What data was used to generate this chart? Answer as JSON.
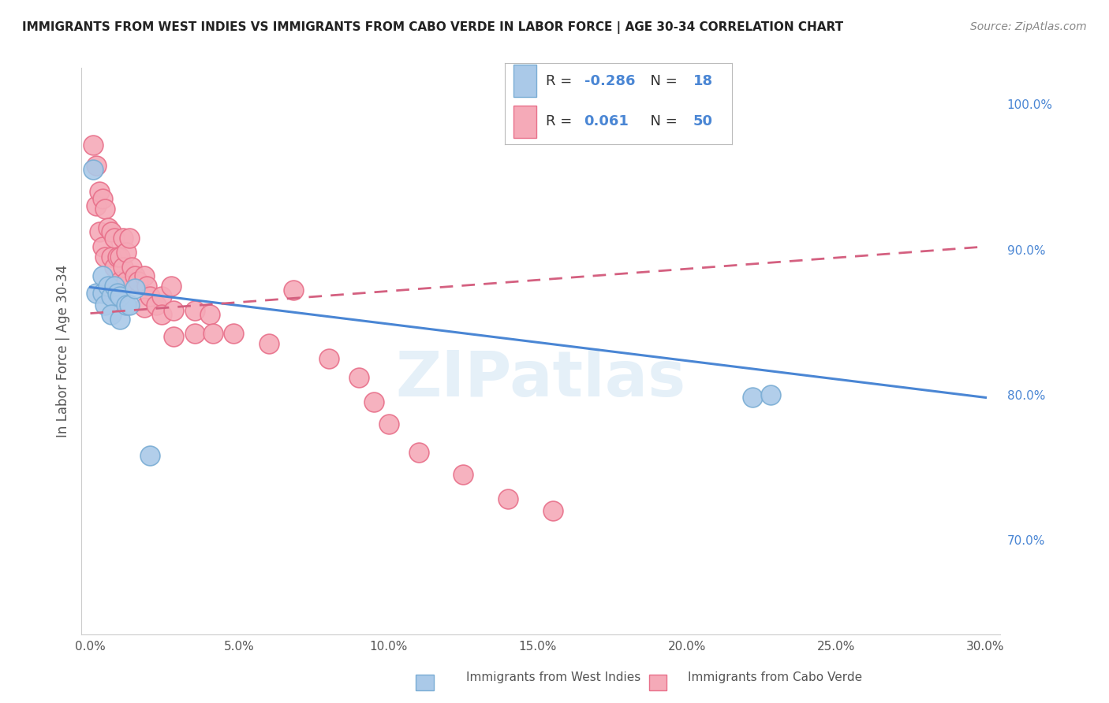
{
  "title": "IMMIGRANTS FROM WEST INDIES VS IMMIGRANTS FROM CABO VERDE IN LABOR FORCE | AGE 30-34 CORRELATION CHART",
  "source": "Source: ZipAtlas.com",
  "ylabel": "In Labor Force | Age 30-34",
  "xlim": [
    -0.003,
    0.305
  ],
  "ylim": [
    0.635,
    1.025
  ],
  "xticks": [
    0.0,
    0.05,
    0.1,
    0.15,
    0.2,
    0.25,
    0.3
  ],
  "xticklabels": [
    "0.0%",
    "5.0%",
    "10.0%",
    "15.0%",
    "20.0%",
    "25.0%",
    "30.0%"
  ],
  "yticks_right": [
    0.7,
    0.8,
    0.9,
    1.0
  ],
  "yticklabels_right": [
    "70.0%",
    "80.0%",
    "90.0%",
    "100.0%"
  ],
  "west_indies_color": "#aac9e8",
  "cabo_verde_color": "#f5aab8",
  "west_indies_edge": "#7aadd4",
  "cabo_verde_edge": "#e8708a",
  "trend_blue": "#4a86d4",
  "trend_pink": "#d46080",
  "legend_R1": "-0.286",
  "legend_N1": "18",
  "legend_R2": "0.061",
  "legend_N2": "50",
  "watermark": "ZIPatlas",
  "blue_trend_x0": 0.0,
  "blue_trend_y0": 0.874,
  "blue_trend_x1": 0.3,
  "blue_trend_y1": 0.798,
  "pink_trend_x0": 0.0,
  "pink_trend_y0": 0.856,
  "pink_trend_x1": 0.3,
  "pink_trend_y1": 0.902,
  "west_indies_x": [
    0.001,
    0.002,
    0.004,
    0.004,
    0.005,
    0.006,
    0.007,
    0.007,
    0.008,
    0.009,
    0.01,
    0.01,
    0.012,
    0.013,
    0.015,
    0.02,
    0.222,
    0.228
  ],
  "west_indies_y": [
    0.955,
    0.87,
    0.87,
    0.882,
    0.862,
    0.875,
    0.868,
    0.855,
    0.875,
    0.87,
    0.868,
    0.852,
    0.862,
    0.862,
    0.873,
    0.758,
    0.798,
    0.8
  ],
  "cabo_verde_x": [
    0.001,
    0.002,
    0.002,
    0.003,
    0.003,
    0.004,
    0.004,
    0.005,
    0.005,
    0.006,
    0.007,
    0.007,
    0.008,
    0.008,
    0.009,
    0.01,
    0.01,
    0.011,
    0.011,
    0.012,
    0.012,
    0.013,
    0.014,
    0.015,
    0.016,
    0.018,
    0.018,
    0.019,
    0.02,
    0.022,
    0.024,
    0.024,
    0.027,
    0.028,
    0.028,
    0.035,
    0.035,
    0.04,
    0.041,
    0.048,
    0.06,
    0.068,
    0.08,
    0.09,
    0.095,
    0.1,
    0.11,
    0.125,
    0.14,
    0.155
  ],
  "cabo_verde_y": [
    0.972,
    0.958,
    0.93,
    0.94,
    0.912,
    0.935,
    0.902,
    0.928,
    0.895,
    0.915,
    0.912,
    0.895,
    0.908,
    0.888,
    0.895,
    0.895,
    0.878,
    0.908,
    0.888,
    0.898,
    0.878,
    0.908,
    0.888,
    0.882,
    0.878,
    0.882,
    0.86,
    0.875,
    0.868,
    0.862,
    0.868,
    0.855,
    0.875,
    0.858,
    0.84,
    0.858,
    0.842,
    0.855,
    0.842,
    0.842,
    0.835,
    0.872,
    0.825,
    0.812,
    0.795,
    0.78,
    0.76,
    0.745,
    0.728,
    0.72
  ]
}
